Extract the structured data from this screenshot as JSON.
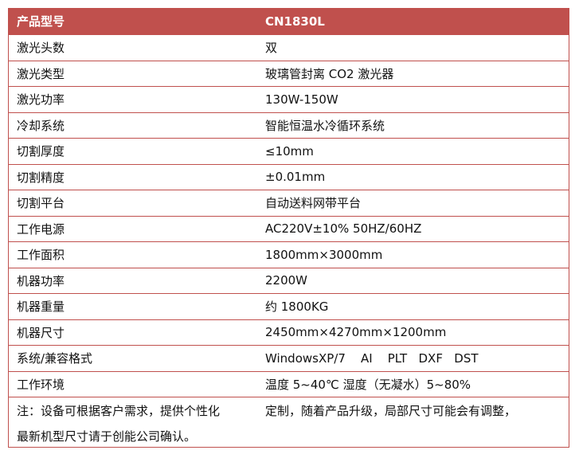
{
  "header": {
    "label": "产品型号",
    "value": "CN1830L"
  },
  "rows": [
    {
      "label": "激光头数",
      "value": "双"
    },
    {
      "label": "激光类型",
      "value": "玻璃管封离 CO2 激光器"
    },
    {
      "label": "激光功率",
      "value": "130W-150W"
    },
    {
      "label": "冷却系统",
      "value": "智能恒温水冷循环系统"
    },
    {
      "label": "切割厚度",
      "value": "≤10mm"
    },
    {
      "label": "切割精度",
      "value": "±0.01mm"
    },
    {
      "label": "切割平台",
      "value": "自动送料网带平台"
    },
    {
      "label": "工作电源",
      "value": "AC220V±10% 50HZ/60HZ"
    },
    {
      "label": "工作面积",
      "value": "1800mm×3000mm"
    },
    {
      "label": "机器功率",
      "value": "2200W"
    },
    {
      "label": "机器重量",
      "value": "约 1800KG"
    },
    {
      "label": "机器尺寸",
      "value": "2450mm×4270mm×1200mm"
    },
    {
      "label": "系统/兼容格式",
      "value": "WindowsXP/7    AI    PLT   DXF   DST"
    },
    {
      "label": "工作环境",
      "value": "温度 5~40℃ 湿度（无凝水）5~80%"
    }
  ],
  "note": {
    "line1a": "注：设备可根据客户需求，提供个性化",
    "line1b": "定制，随着产品升级，局部尺寸可能会有调整，",
    "line2": "最新机型尺寸请于创能公司确认。"
  },
  "colors": {
    "accent": "#c0504d"
  }
}
